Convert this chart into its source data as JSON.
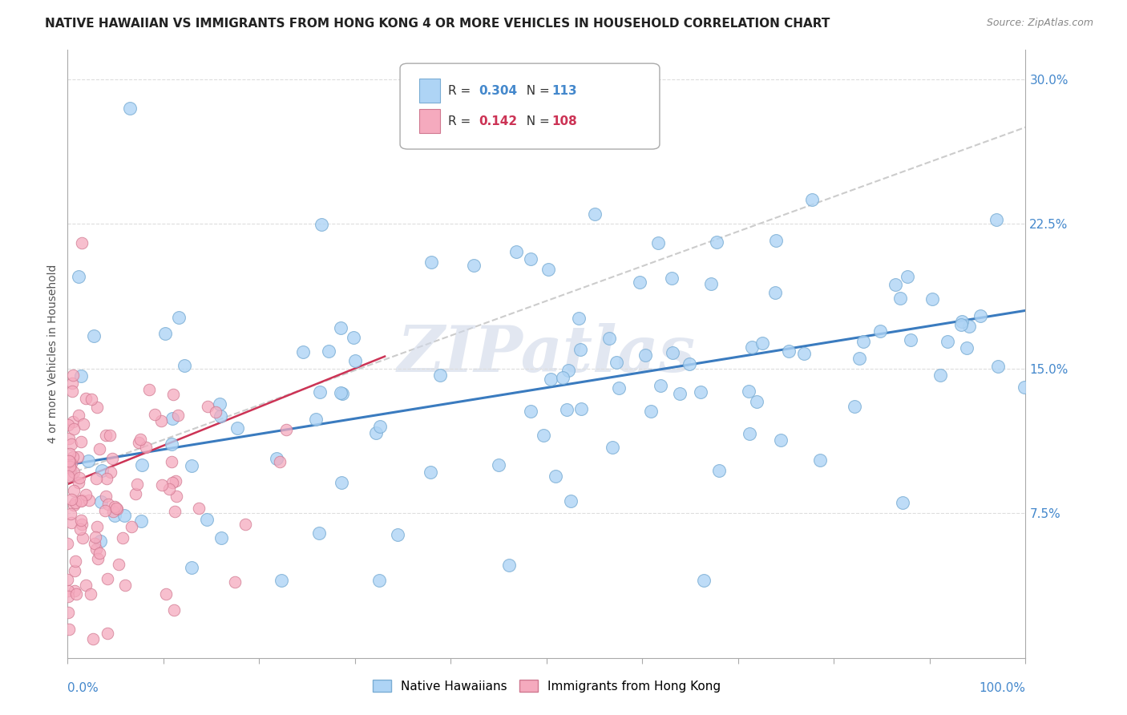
{
  "title": "NATIVE HAWAIIAN VS IMMIGRANTS FROM HONG KONG 4 OR MORE VEHICLES IN HOUSEHOLD CORRELATION CHART",
  "source": "Source: ZipAtlas.com",
  "ylabel": "4 or more Vehicles in Household",
  "blue_R": 0.304,
  "blue_N": 113,
  "pink_R": 0.142,
  "pink_N": 108,
  "blue_label": "Native Hawaiians",
  "pink_label": "Immigrants from Hong Kong",
  "blue_color": "#aed4f5",
  "blue_edge": "#7aadd4",
  "pink_color": "#f5aabe",
  "pink_edge": "#d07890",
  "blue_line_color": "#3a7bbf",
  "pink_line_color": "#cc3355",
  "gray_line_color": "#cccccc",
  "watermark": "ZIPatlas",
  "watermark_color": "#d0d8e8",
  "xlim": [
    0.0,
    100.0
  ],
  "ylim": [
    0.0,
    0.315
  ],
  "ytick_vals": [
    0.075,
    0.15,
    0.225,
    0.3
  ],
  "ytick_labels": [
    "7.5%",
    "15.0%",
    "22.5%",
    "30.0%"
  ],
  "title_fontsize": 11,
  "source_fontsize": 9,
  "tick_fontsize": 11
}
